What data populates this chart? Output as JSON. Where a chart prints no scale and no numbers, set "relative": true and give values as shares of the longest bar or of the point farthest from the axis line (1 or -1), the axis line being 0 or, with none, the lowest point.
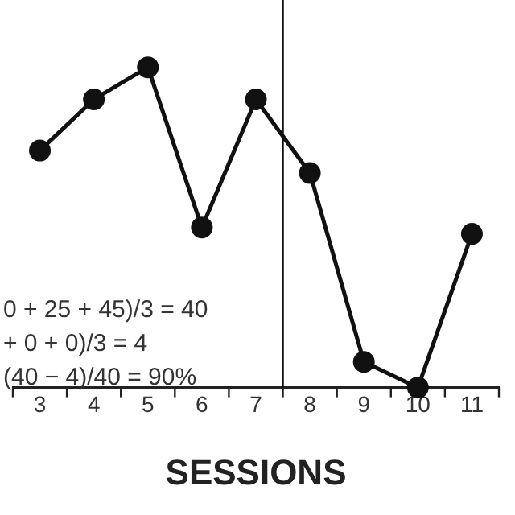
{
  "chart_data": {
    "type": "line",
    "relative": true,
    "xlabel": "SESSIONS",
    "x": [
      3,
      4,
      5,
      6,
      7,
      8,
      9,
      10,
      11
    ],
    "values": [
      0.74,
      0.9,
      1,
      0.5,
      0.9,
      0.67,
      0.08,
      0,
      0.48
    ],
    "color": "#111111",
    "marker": "circle",
    "line_style": "solid",
    "grid": false,
    "legend": false,
    "xlim": [
      2.5,
      11.5
    ],
    "xticks": [
      3,
      4,
      5,
      6,
      7,
      8,
      9,
      10,
      11
    ],
    "ref_lines": [
      {
        "axis": "x",
        "value": 7.5,
        "color": "#111111"
      }
    ],
    "annotations": [
      "0 + 25 + 45)/3 = 40",
      "+ 0 + 0)/3 = 4",
      "(40 − 4)/40 = 90%"
    ]
  }
}
